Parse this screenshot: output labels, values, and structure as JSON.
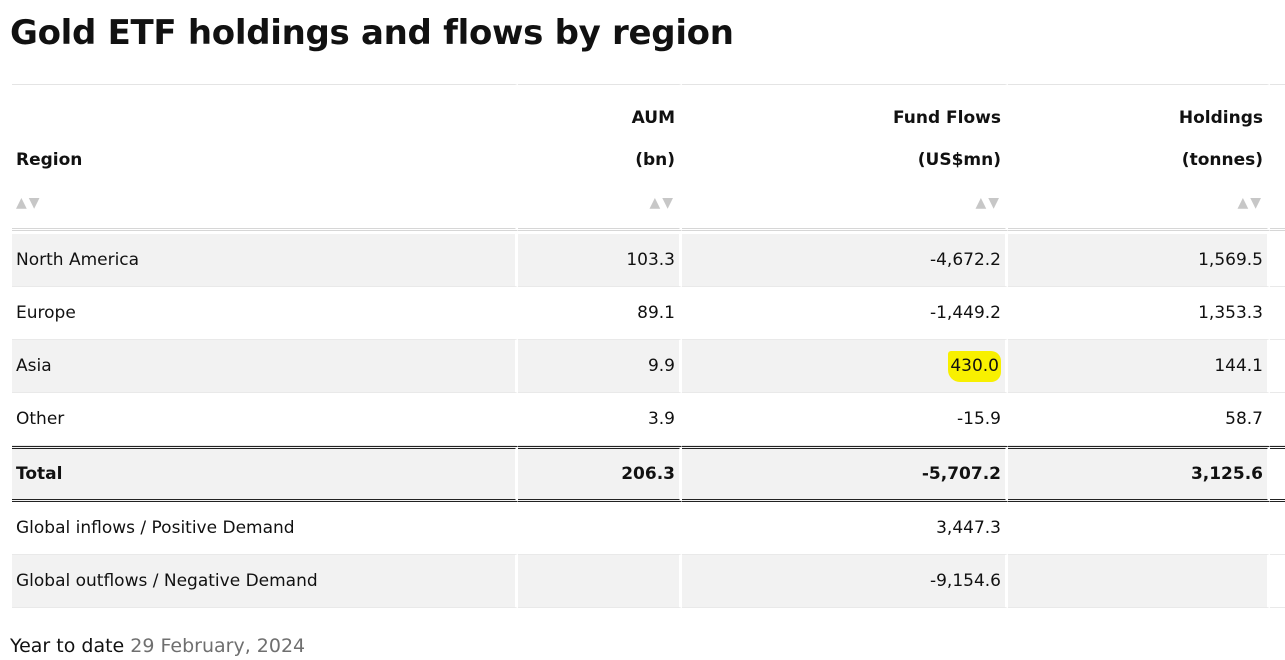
{
  "title": "Gold ETF holdings and flows by region",
  "table": {
    "headers": [
      {
        "line1": "",
        "line2": "Region",
        "align": "left"
      },
      {
        "line1": "AUM",
        "line2": "(bn)",
        "align": "right"
      },
      {
        "line1": "Fund Flows",
        "line2": "(US$mn)",
        "align": "right"
      },
      {
        "line1": "Holdings",
        "line2": "(tonnes)",
        "align": "right"
      }
    ],
    "sort_icon": "▲▼",
    "rows": [
      {
        "region": "North America",
        "aum": "103.3",
        "flows": "-4,672.2",
        "holdings": "1,569.5"
      },
      {
        "region": "Europe",
        "aum": "89.1",
        "flows": "-1,449.2",
        "holdings": "1,353.3"
      },
      {
        "region": "Asia",
        "aum": "9.9",
        "flows": "430.0",
        "holdings": "144.1",
        "flows_highlighted": true
      },
      {
        "region": "Other",
        "aum": "3.9",
        "flows": "-15.9",
        "holdings": "58.7"
      }
    ],
    "total": {
      "region": "Total",
      "aum": "206.3",
      "flows": "-5,707.2",
      "holdings": "3,125.6"
    },
    "summary": [
      {
        "label": "Global inflows / Positive Demand",
        "flows": "3,447.3"
      },
      {
        "label": "Global outflows / Negative Demand",
        "flows": "-9,154.6"
      }
    ]
  },
  "footer": {
    "prefix": "Year to date",
    "date": "29 February, 2024"
  },
  "colors": {
    "highlight": "#f8f000",
    "row_shade": "#f2f2f2",
    "text": "#111111",
    "date_text": "#6f6f6f"
  }
}
